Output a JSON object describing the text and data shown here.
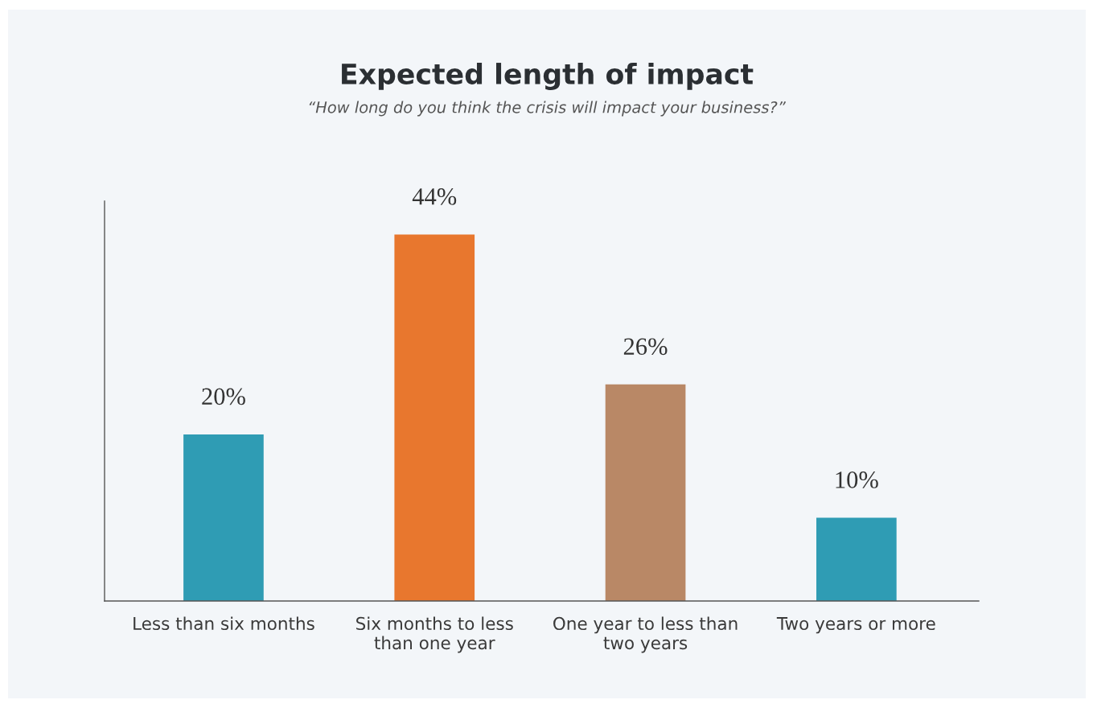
{
  "chart_data": {
    "type": "bar",
    "title": "Expected length of impact",
    "subtitle": "“How long do you think the crisis will impact your business?”",
    "categories": [
      "Less than six months",
      "Six months to less\nthan one year",
      "One year to less than\ntwo years",
      "Two years or more"
    ],
    "values": [
      20,
      44,
      26,
      10
    ],
    "value_labels": [
      "20%",
      "44%",
      "26%",
      "10%"
    ],
    "colors": [
      "#2f9cb4",
      "#e8772e",
      "#b98866",
      "#2f9cb4"
    ],
    "relative": false,
    "ylim": [
      0,
      48
    ],
    "grid": false
  }
}
